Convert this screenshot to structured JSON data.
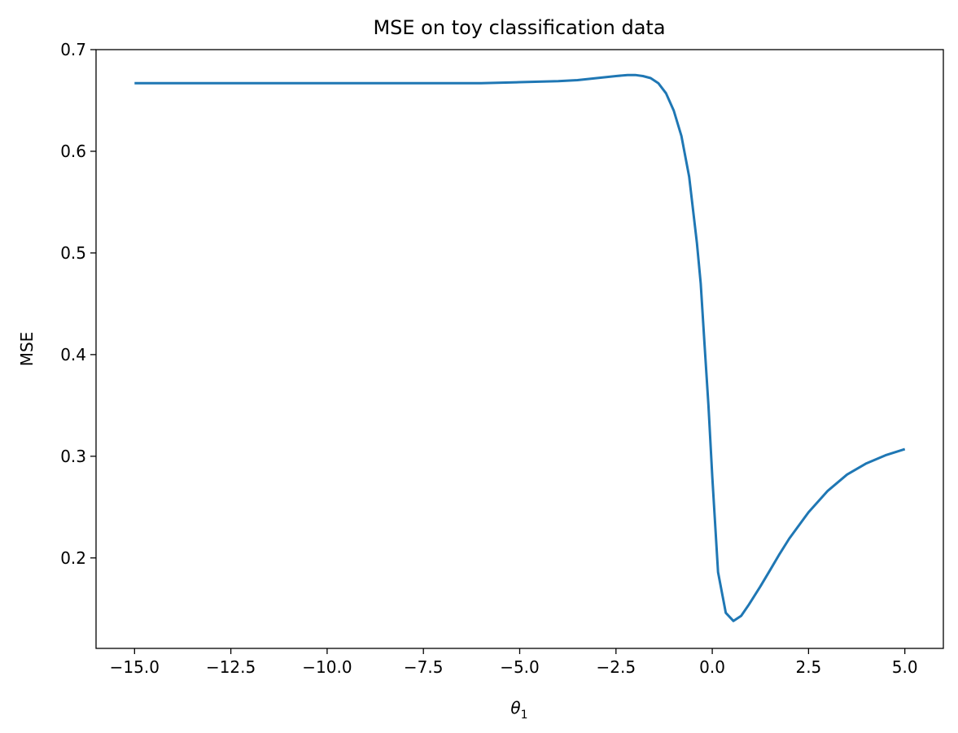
{
  "chart_data": {
    "type": "line",
    "title": "MSE on toy classification data",
    "xlabel": "θ",
    "xlabel_subscript": "1",
    "ylabel": "MSE",
    "xlim": [
      -16.0,
      6.0
    ],
    "ylim": [
      0.111,
      0.7
    ],
    "xticks": [
      -15.0,
      -12.5,
      -10.0,
      -7.5,
      -5.0,
      -2.5,
      0.0,
      2.5,
      5.0
    ],
    "xtick_labels": [
      "−15.0",
      "−12.5",
      "−10.0",
      "−7.5",
      "−5.0",
      "−2.5",
      "0.0",
      "2.5",
      "5.0"
    ],
    "yticks": [
      0.2,
      0.3,
      0.4,
      0.5,
      0.6,
      0.7
    ],
    "ytick_labels": [
      "0.2",
      "0.3",
      "0.4",
      "0.5",
      "0.6",
      "0.7"
    ],
    "grid": false,
    "series": [
      {
        "color": "#1f77b4",
        "x": [
          -15.0,
          -12.5,
          -10.0,
          -7.5,
          -6.0,
          -5.0,
          -4.0,
          -3.5,
          -3.0,
          -2.5,
          -2.2,
          -2.0,
          -1.8,
          -1.6,
          -1.4,
          -1.2,
          -1.0,
          -0.8,
          -0.6,
          -0.4,
          -0.3,
          -0.2,
          -0.1,
          0.0,
          0.15,
          0.35,
          0.55,
          0.75,
          0.95,
          1.25,
          1.5,
          1.75,
          2.0,
          2.5,
          3.0,
          3.5,
          4.0,
          4.5,
          5.0
        ],
        "y": [
          0.667,
          0.667,
          0.667,
          0.667,
          0.667,
          0.668,
          0.669,
          0.67,
          0.672,
          0.674,
          0.675,
          0.675,
          0.674,
          0.672,
          0.667,
          0.657,
          0.64,
          0.615,
          0.575,
          0.51,
          0.47,
          0.41,
          0.35,
          0.28,
          0.186,
          0.146,
          0.138,
          0.143,
          0.154,
          0.172,
          0.188,
          0.204,
          0.219,
          0.245,
          0.266,
          0.282,
          0.293,
          0.301,
          0.307
        ]
      }
    ]
  }
}
